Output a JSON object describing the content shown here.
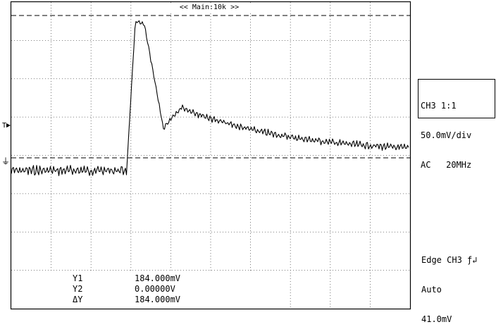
{
  "timebase": {
    "label": "<< Main:10k >>"
  },
  "channel": {
    "line1": "CH3 1:1",
    "line2": "50.0mV/div",
    "line3": "AC   20MHz"
  },
  "trigger": {
    "line1": "Edge CH3 ƒ↲",
    "line2": "Auto",
    "line3": "41.0mV"
  },
  "cursors": [
    {
      "label": "Y1",
      "value": "184.000mV"
    },
    {
      "label": "Y2",
      "value": "0.00000V"
    },
    {
      "label": "ΔY",
      "value": "184.000mV"
    }
  ],
  "markers": {
    "ground": "⏚",
    "trigger_level": "T"
  }
}
